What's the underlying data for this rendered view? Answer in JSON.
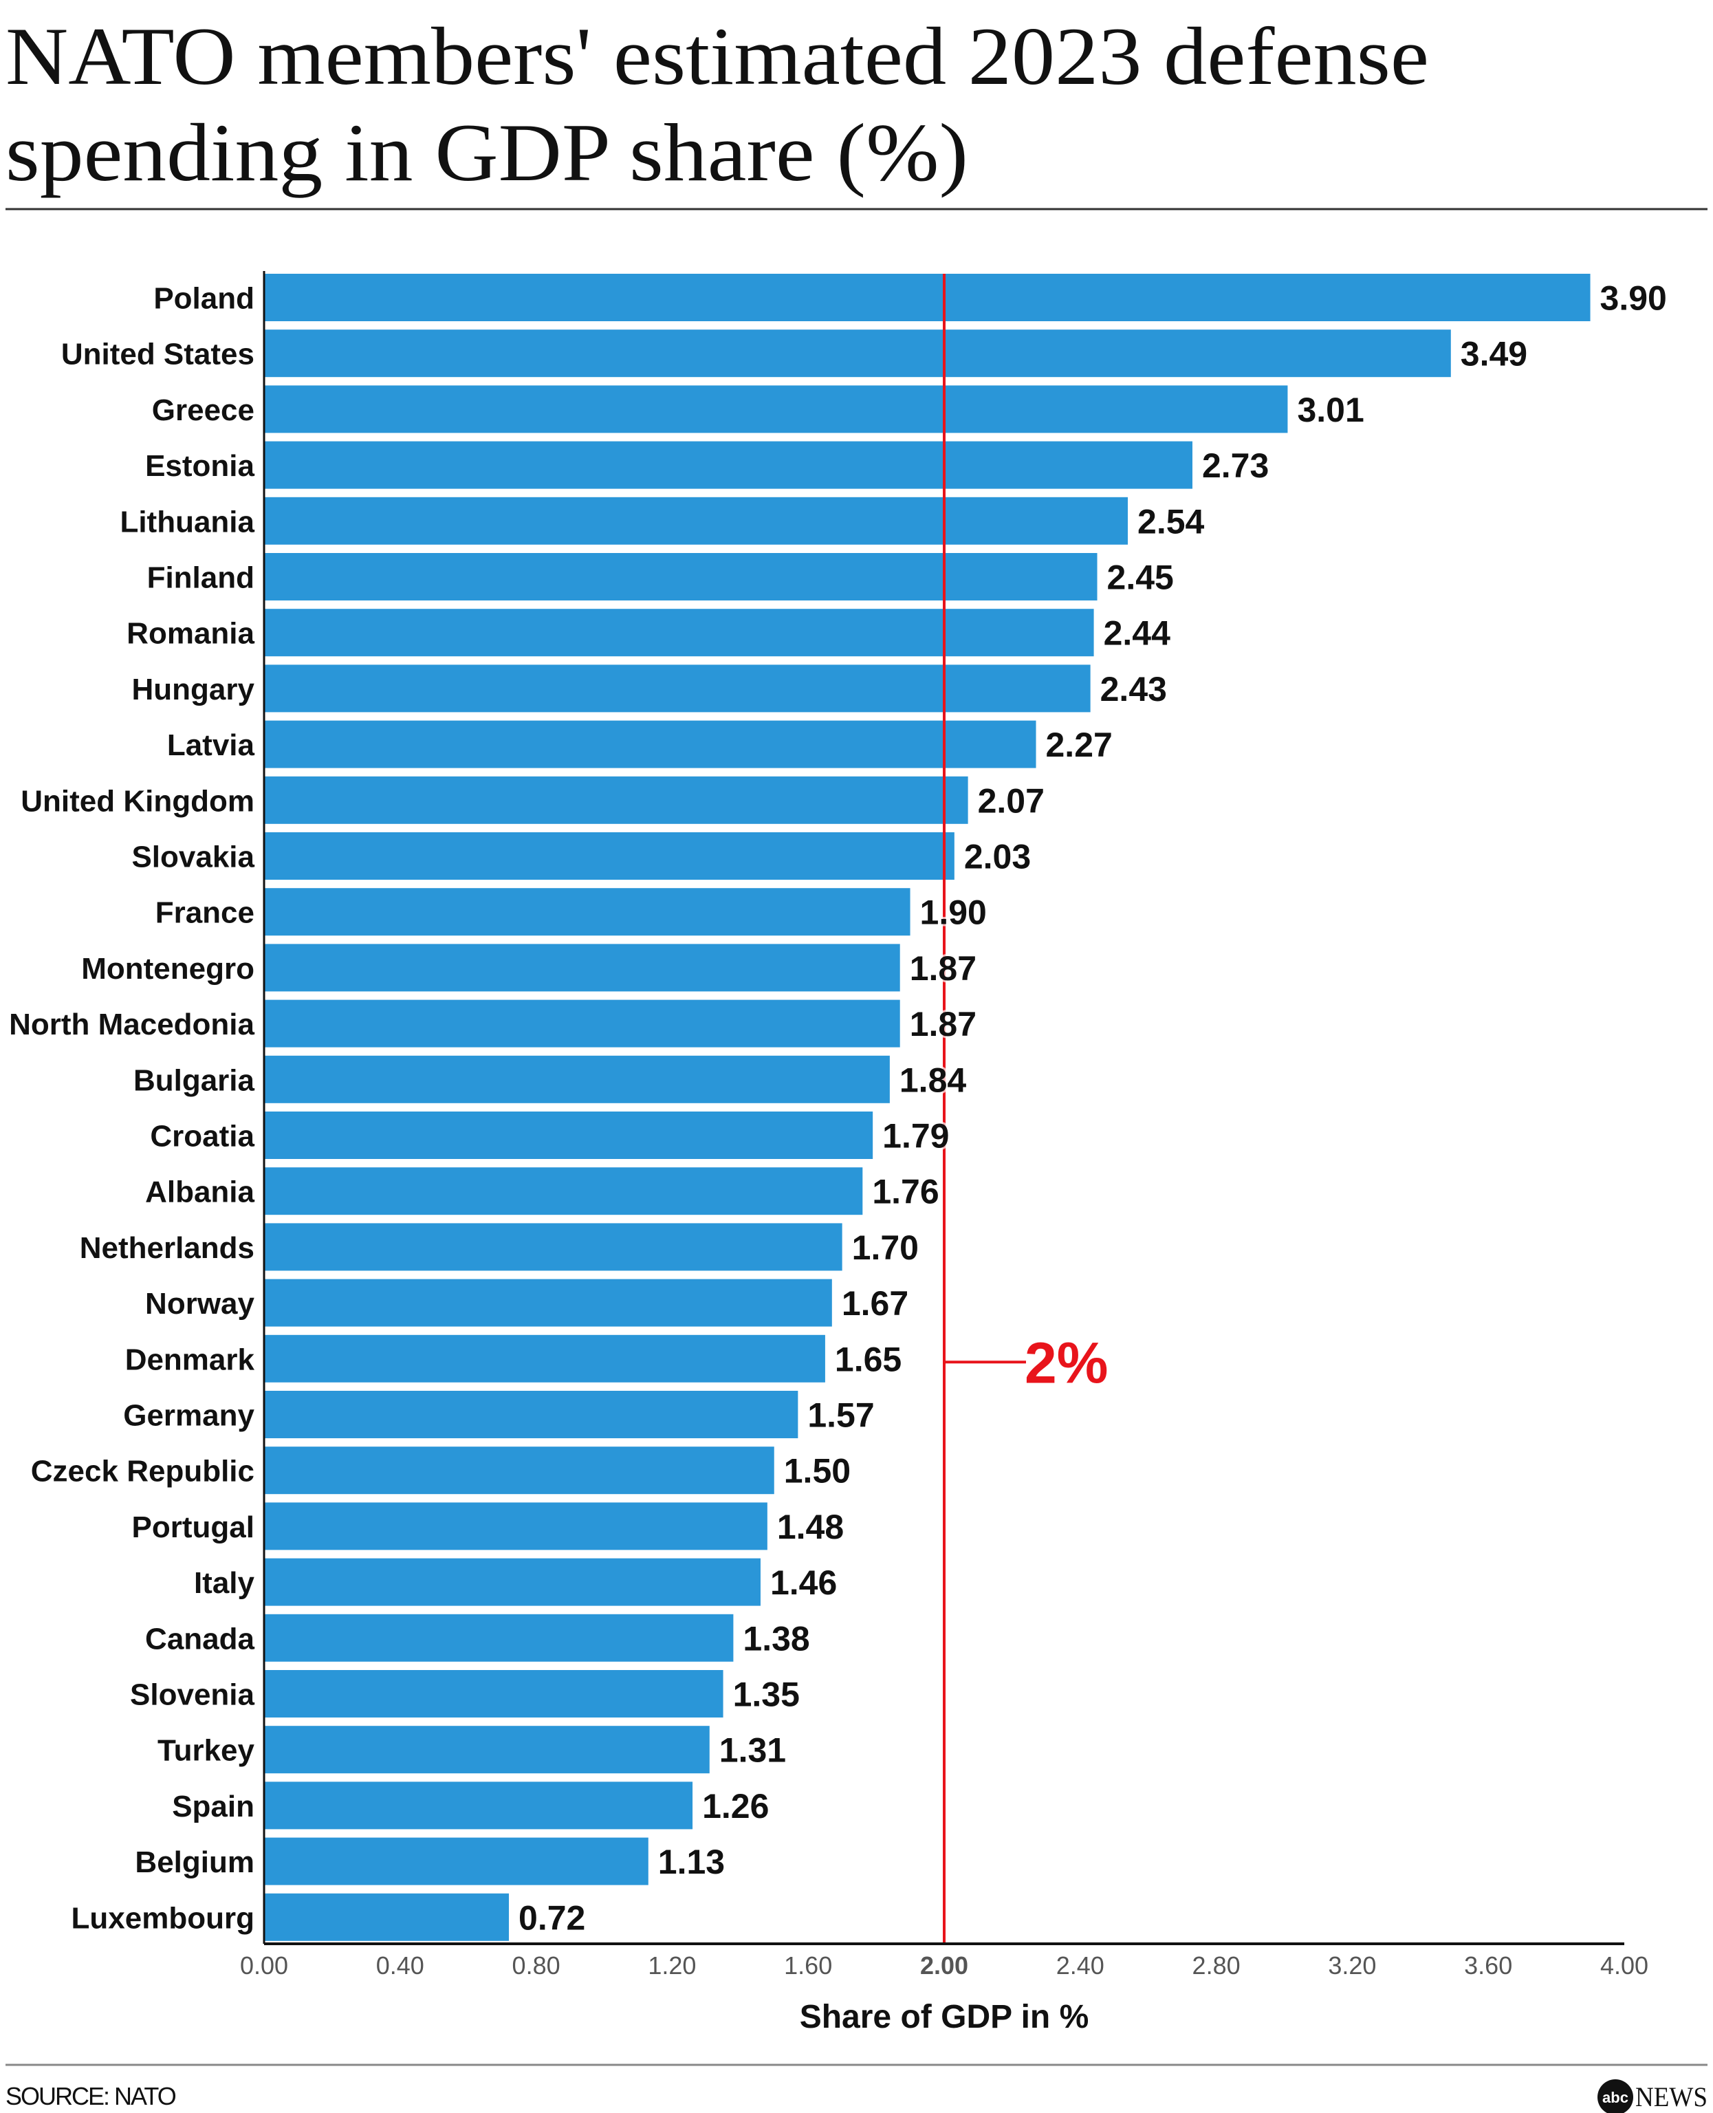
{
  "chart_data": {
    "type": "bar",
    "orientation": "horizontal",
    "title": "NATO members' estimated 2023 defense spending in GDP share (%)",
    "title_lines": [
      "NATO members' estimated 2023 defense",
      "spending in GDP share (%)"
    ],
    "xlabel": "Share of GDP in %",
    "xlim": [
      0,
      4
    ],
    "xticks": [
      "0.00",
      "0.40",
      "0.80",
      "1.20",
      "1.60",
      "2.00",
      "2.40",
      "2.80",
      "3.20",
      "3.60",
      "4.00"
    ],
    "highlight_tick": "2.00",
    "reference_line": {
      "value": 2.0,
      "label": "2%"
    },
    "grid": false,
    "categories": [
      "Poland",
      "United States",
      "Greece",
      "Estonia",
      "Lithuania",
      "Finland",
      "Romania",
      "Hungary",
      "Latvia",
      "United Kingdom",
      "Slovakia",
      "France",
      "Montenegro",
      "North Macedonia",
      "Bulgaria",
      "Croatia",
      "Albania",
      "Netherlands",
      "Norway",
      "Denmark",
      "Germany",
      "Czeck Republic",
      "Portugal",
      "Italy",
      "Canada",
      "Slovenia",
      "Turkey",
      "Spain",
      "Belgium",
      "Luxembourg"
    ],
    "values": [
      3.9,
      3.49,
      3.01,
      2.73,
      2.54,
      2.45,
      2.44,
      2.43,
      2.27,
      2.07,
      2.03,
      1.9,
      1.87,
      1.87,
      1.84,
      1.79,
      1.76,
      1.7,
      1.67,
      1.65,
      1.57,
      1.5,
      1.48,
      1.46,
      1.38,
      1.35,
      1.31,
      1.26,
      1.13,
      0.72
    ],
    "value_labels": [
      "3.90",
      "3.49",
      "3.01",
      "2.73",
      "2.54",
      "2.45",
      "2.44",
      "2.43",
      "2.27",
      "2.07",
      "2.03",
      "1.90",
      "1.87",
      "1.87",
      "1.84",
      "1.79",
      "1.76",
      "1.70",
      "1.67",
      "1.65",
      "1.57",
      "1.50",
      "1.48",
      "1.46",
      "1.38",
      "1.35",
      "1.31",
      "1.26",
      "1.13",
      "0.72"
    ],
    "colors": {
      "bar": "#2a96d8",
      "reference": "#e8141b",
      "axis": "#111111"
    }
  },
  "footer": {
    "source": "SOURCE: NATO",
    "logo": "abc NEWS",
    "logo_mark": "abc",
    "logo_word": "NEWS"
  }
}
